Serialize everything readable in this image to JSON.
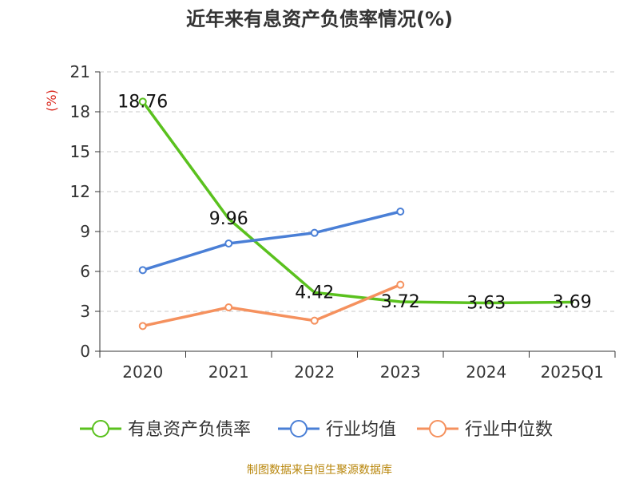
{
  "chart_data": {
    "type": "line",
    "title": "近年来有息资产负债率情况(%)",
    "ylabel": "(%)",
    "xlabel": "",
    "categories": [
      "2020",
      "2021",
      "2022",
      "2023",
      "2024",
      "2025Q1"
    ],
    "ylim": [
      0,
      21
    ],
    "yticks": [
      0,
      3,
      6,
      9,
      12,
      15,
      18,
      21
    ],
    "grid": true,
    "legend_position": "bottom",
    "series": [
      {
        "name": "有息资产负债率",
        "color": "#5ac11e",
        "values": [
          18.76,
          9.96,
          4.42,
          3.72,
          3.63,
          3.69
        ],
        "labels": [
          "18.76",
          "9.96",
          "4.42",
          "3.72",
          "3.63",
          "3.69"
        ]
      },
      {
        "name": "行业均值",
        "color": "#4a7fd6",
        "values": [
          6.1,
          8.1,
          8.9,
          10.5,
          null,
          null
        ]
      },
      {
        "name": "行业中位数",
        "color": "#f5915e",
        "values": [
          1.9,
          3.3,
          2.3,
          5.0,
          null,
          null
        ]
      }
    ]
  },
  "source": "制图数据来自恒生聚源数据库"
}
